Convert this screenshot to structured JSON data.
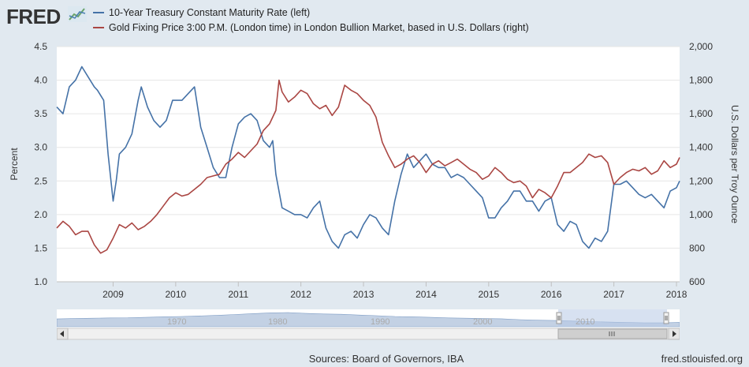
{
  "header": {
    "logo_text": "FRED",
    "legend": [
      {
        "label": "10-Year Treasury Constant Maturity Rate (left)",
        "color": "#4572a7"
      },
      {
        "label": "Gold Fixing Price 3:00 P.M. (London time) in London Bullion Market, based in U.S. Dollars (right)",
        "color": "#aa4643"
      }
    ]
  },
  "footer": {
    "sources": "Sources: Board of Governors, IBA",
    "url": "fred.stlouisfed.org"
  },
  "navigator": {
    "labels": [
      "1970",
      "1980",
      "1990",
      "2000",
      "2010"
    ]
  },
  "chart_data": {
    "type": "line",
    "ylabel_left": "Percent",
    "ylabel_right": "U.S. Dollars per Troy Ounce",
    "ylim_left": [
      1.0,
      4.5
    ],
    "ylim_right": [
      600,
      2000
    ],
    "xlim": [
      2008.1,
      2018.05
    ],
    "x_ticks": [
      "2009",
      "2010",
      "2011",
      "2012",
      "2013",
      "2014",
      "2015",
      "2016",
      "2017",
      "2018"
    ],
    "y_ticks_left": [
      "1.0",
      "1.5",
      "2.0",
      "2.5",
      "3.0",
      "3.5",
      "4.0",
      "4.5"
    ],
    "y_ticks_right": [
      "600",
      "800",
      "1,000",
      "1,200",
      "1,400",
      "1,600",
      "1,800",
      "2,000"
    ],
    "series": [
      {
        "name": "10-Year Treasury Constant Maturity Rate (left)",
        "axis": "left",
        "color": "#4572a7",
        "x": [
          2008.1,
          2008.2,
          2008.3,
          2008.4,
          2008.5,
          2008.6,
          2008.7,
          2008.75,
          2008.85,
          2008.92,
          2009.0,
          2009.05,
          2009.1,
          2009.2,
          2009.3,
          2009.4,
          2009.45,
          2009.55,
          2009.65,
          2009.75,
          2009.85,
          2009.95,
          2010.1,
          2010.2,
          2010.3,
          2010.4,
          2010.5,
          2010.6,
          2010.7,
          2010.8,
          2010.9,
          2011.0,
          2011.1,
          2011.2,
          2011.3,
          2011.4,
          2011.5,
          2011.55,
          2011.6,
          2011.7,
          2011.8,
          2011.9,
          2012.0,
          2012.1,
          2012.2,
          2012.3,
          2012.4,
          2012.5,
          2012.6,
          2012.7,
          2012.8,
          2012.9,
          2013.0,
          2013.1,
          2013.2,
          2013.3,
          2013.4,
          2013.5,
          2013.6,
          2013.7,
          2013.8,
          2013.9,
          2014.0,
          2014.1,
          2014.2,
          2014.3,
          2014.4,
          2014.5,
          2014.6,
          2014.7,
          2014.8,
          2014.9,
          2015.0,
          2015.1,
          2015.2,
          2015.3,
          2015.4,
          2015.5,
          2015.6,
          2015.7,
          2015.8,
          2015.9,
          2016.0,
          2016.1,
          2016.2,
          2016.3,
          2016.4,
          2016.5,
          2016.6,
          2016.7,
          2016.8,
          2016.9,
          2017.0,
          2017.1,
          2017.2,
          2017.3,
          2017.4,
          2017.5,
          2017.6,
          2017.7,
          2017.8,
          2017.9,
          2018.0,
          2018.05
        ],
        "values": [
          3.6,
          3.5,
          3.9,
          4.0,
          4.2,
          4.05,
          3.9,
          3.85,
          3.7,
          2.9,
          2.2,
          2.5,
          2.9,
          3.0,
          3.2,
          3.7,
          3.9,
          3.6,
          3.4,
          3.3,
          3.4,
          3.7,
          3.7,
          3.8,
          3.9,
          3.3,
          3.0,
          2.7,
          2.55,
          2.55,
          3.0,
          3.35,
          3.45,
          3.5,
          3.4,
          3.1,
          3.0,
          3.1,
          2.6,
          2.1,
          2.05,
          2.0,
          2.0,
          1.95,
          2.1,
          2.2,
          1.8,
          1.6,
          1.5,
          1.7,
          1.75,
          1.65,
          1.85,
          2.0,
          1.95,
          1.8,
          1.7,
          2.2,
          2.6,
          2.9,
          2.7,
          2.8,
          2.9,
          2.75,
          2.7,
          2.7,
          2.55,
          2.6,
          2.55,
          2.45,
          2.35,
          2.25,
          1.95,
          1.95,
          2.1,
          2.2,
          2.35,
          2.35,
          2.2,
          2.2,
          2.05,
          2.2,
          2.25,
          1.85,
          1.75,
          1.9,
          1.85,
          1.6,
          1.5,
          1.65,
          1.6,
          1.75,
          2.45,
          2.45,
          2.5,
          2.4,
          2.3,
          2.25,
          2.3,
          2.2,
          2.1,
          2.35,
          2.4,
          2.5
        ]
      },
      {
        "name": "Gold Fixing Price 3:00 P.M. (London time) in London Bullion Market, based in U.S. Dollars (right)",
        "axis": "right",
        "color": "#aa4643",
        "x": [
          2008.1,
          2008.2,
          2008.3,
          2008.4,
          2008.5,
          2008.6,
          2008.7,
          2008.8,
          2008.9,
          2009.0,
          2009.1,
          2009.2,
          2009.3,
          2009.4,
          2009.5,
          2009.6,
          2009.7,
          2009.8,
          2009.9,
          2010.0,
          2010.1,
          2010.2,
          2010.3,
          2010.4,
          2010.5,
          2010.6,
          2010.7,
          2010.8,
          2010.9,
          2011.0,
          2011.1,
          2011.2,
          2011.3,
          2011.4,
          2011.5,
          2011.6,
          2011.65,
          2011.7,
          2011.8,
          2011.9,
          2012.0,
          2012.1,
          2012.2,
          2012.3,
          2012.4,
          2012.5,
          2012.6,
          2012.7,
          2012.8,
          2012.9,
          2013.0,
          2013.1,
          2013.2,
          2013.3,
          2013.4,
          2013.5,
          2013.6,
          2013.7,
          2013.8,
          2013.9,
          2014.0,
          2014.1,
          2014.2,
          2014.3,
          2014.4,
          2014.5,
          2014.6,
          2014.7,
          2014.8,
          2014.9,
          2015.0,
          2015.1,
          2015.2,
          2015.3,
          2015.4,
          2015.5,
          2015.6,
          2015.7,
          2015.8,
          2015.9,
          2016.0,
          2016.1,
          2016.2,
          2016.3,
          2016.4,
          2016.5,
          2016.6,
          2016.7,
          2016.8,
          2016.9,
          2017.0,
          2017.1,
          2017.2,
          2017.3,
          2017.4,
          2017.5,
          2017.6,
          2017.7,
          2017.8,
          2017.9,
          2018.0,
          2018.05
        ],
        "values": [
          920,
          960,
          930,
          880,
          900,
          900,
          820,
          770,
          790,
          860,
          940,
          920,
          950,
          910,
          930,
          960,
          1000,
          1050,
          1100,
          1130,
          1110,
          1120,
          1150,
          1180,
          1220,
          1230,
          1240,
          1300,
          1330,
          1370,
          1340,
          1380,
          1420,
          1500,
          1540,
          1620,
          1800,
          1730,
          1670,
          1700,
          1740,
          1720,
          1660,
          1630,
          1650,
          1590,
          1640,
          1770,
          1740,
          1720,
          1680,
          1650,
          1580,
          1430,
          1350,
          1280,
          1300,
          1330,
          1350,
          1310,
          1250,
          1300,
          1320,
          1290,
          1310,
          1330,
          1300,
          1270,
          1250,
          1210,
          1230,
          1280,
          1250,
          1210,
          1190,
          1200,
          1170,
          1100,
          1150,
          1130,
          1100,
          1170,
          1250,
          1250,
          1280,
          1310,
          1360,
          1340,
          1350,
          1310,
          1180,
          1220,
          1250,
          1270,
          1260,
          1280,
          1240,
          1260,
          1320,
          1280,
          1300,
          1340
        ]
      }
    ]
  }
}
